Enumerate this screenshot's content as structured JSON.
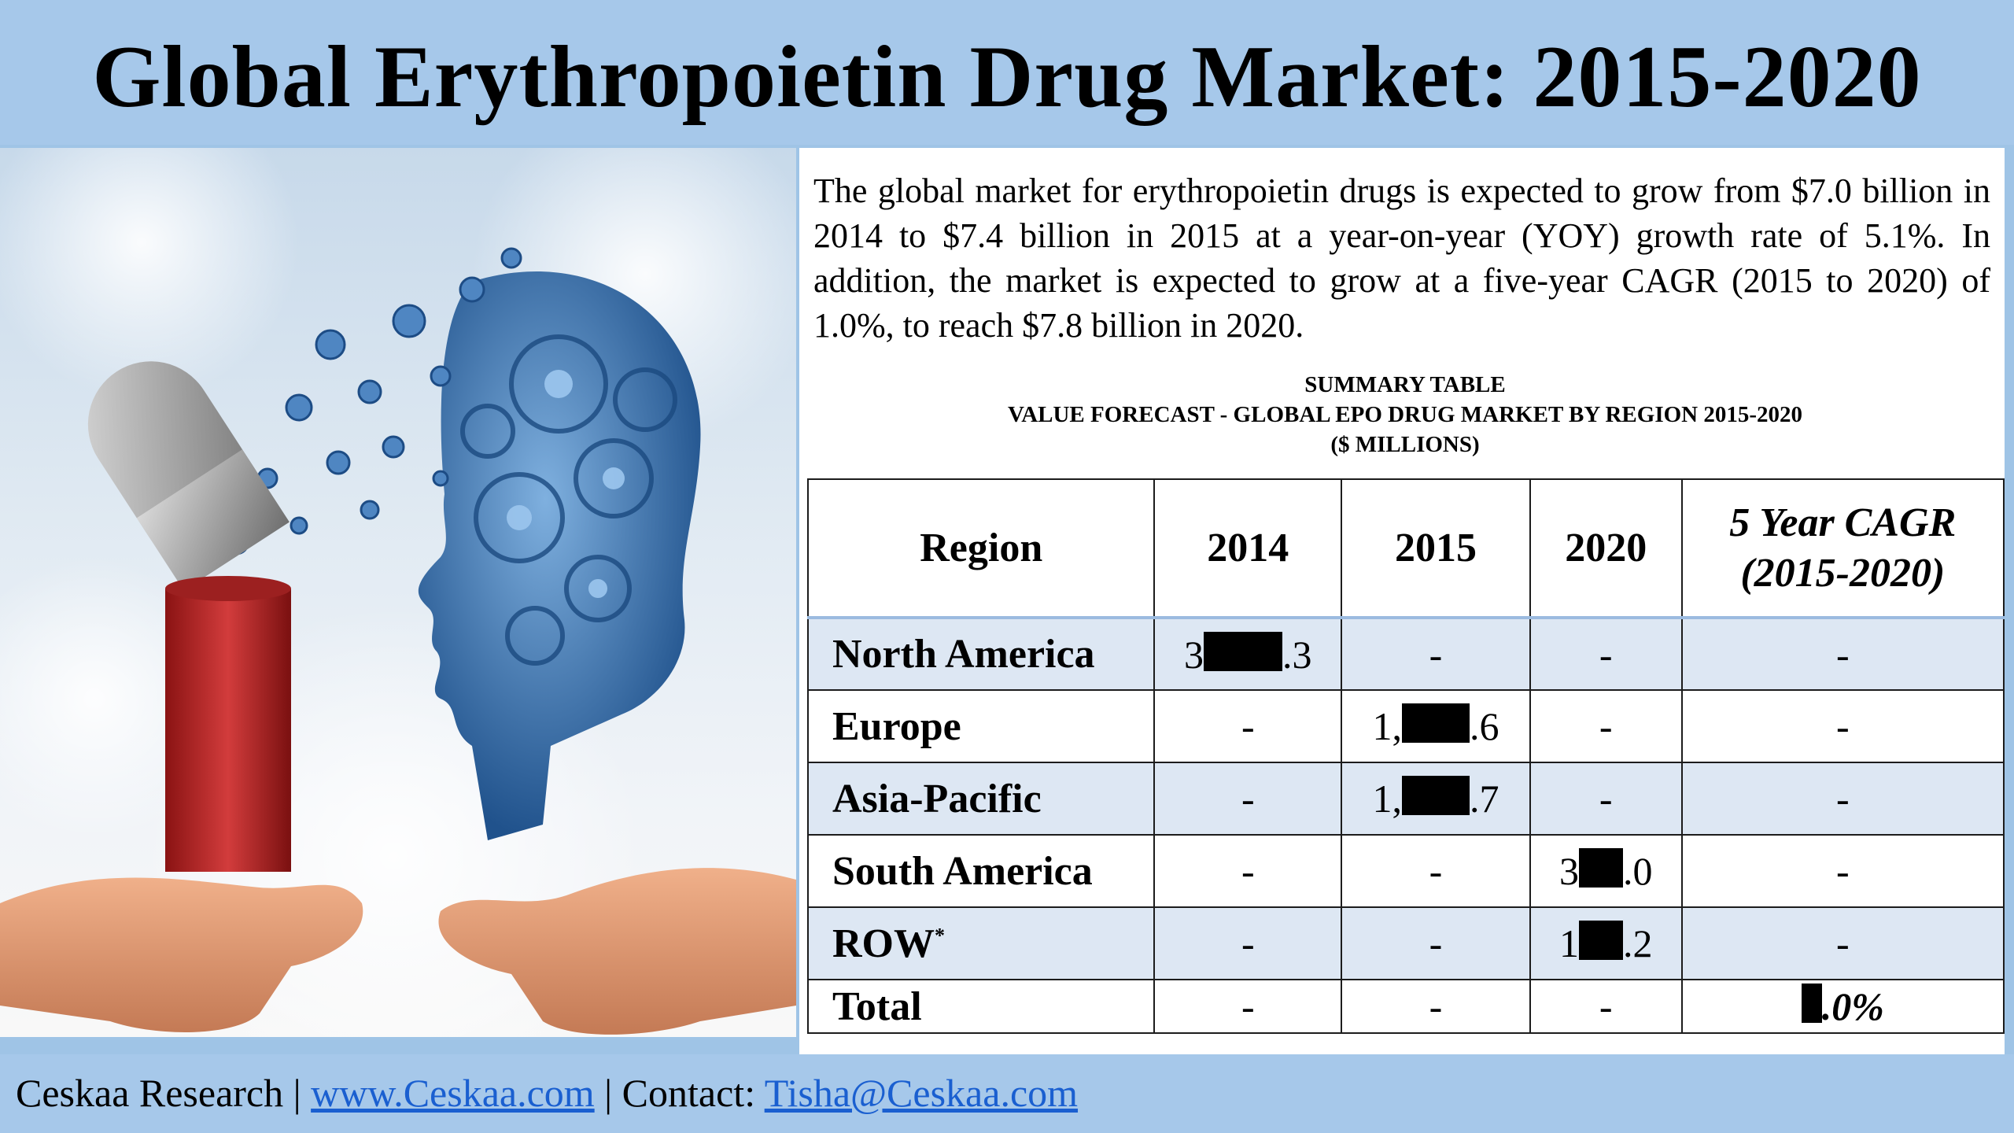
{
  "header": {
    "title": "Global Erythropoietin Drug Market: 2015-2020"
  },
  "intro": {
    "paragraph": "The global market for erythropoietin drugs is expected to grow from $7.0 billion in 2014 to $7.4 billion in 2015 at a year-on-year (YOY) growth rate of 5.1%. In addition, the market is expected to grow at a five-year CAGR (2015 to 2020) of 1.0%, to reach $7.8 billion in 2020."
  },
  "summary": {
    "heading_line1": "SUMMARY TABLE",
    "heading_line2": "VALUE FORECAST - GLOBAL EPO DRUG MARKET BY REGION 2015-2020",
    "heading_line3": "($ MILLIONS)"
  },
  "table": {
    "headers": {
      "region": "Region",
      "y2014": "2014",
      "y2015": "2015",
      "y2020": "2020",
      "cagr_line1": "5 Year CAGR",
      "cagr_line2": "(2015-2020)"
    },
    "rows": [
      {
        "region": "North America",
        "v2014_pre": "3",
        "v2014_post": ".3",
        "v2015": "-",
        "v2020": "-",
        "cagr": "-"
      },
      {
        "region": "Europe",
        "v2014": "-",
        "v2015_pre": "1,",
        "v2015_post": ".6",
        "v2020": "-",
        "cagr": "-"
      },
      {
        "region": "Asia-Pacific",
        "v2014": "-",
        "v2015_pre": "1,",
        "v2015_post": ".7",
        "v2020": "-",
        "cagr": "-"
      },
      {
        "region": "South America",
        "v2014": "-",
        "v2015": "-",
        "v2020_pre": "3",
        "v2020_post": ".0",
        "cagr": "-"
      },
      {
        "region": "ROW",
        "region_sup": "*",
        "v2014": "-",
        "v2015": "-",
        "v2020_pre": "1",
        "v2020_post": ".2",
        "cagr": "-"
      },
      {
        "region": "Total",
        "v2014": "-",
        "v2015": "-",
        "v2020": "-",
        "cagr_post": ".0%"
      }
    ]
  },
  "footer": {
    "company": "Ceskaa Research | ",
    "website": "www.Ceskaa.com",
    "separator": " | Contact: ",
    "email": "Tisha@Ceskaa.com",
    "logo_text": "Ceskaa"
  },
  "colors": {
    "header_bg": "#a6c8ea",
    "row_alt": "#dde7f3",
    "link": "#1a5fd0",
    "logo": "#b01c1c"
  },
  "image": {
    "description_icon": "pill-to-gear-head-illustration"
  }
}
